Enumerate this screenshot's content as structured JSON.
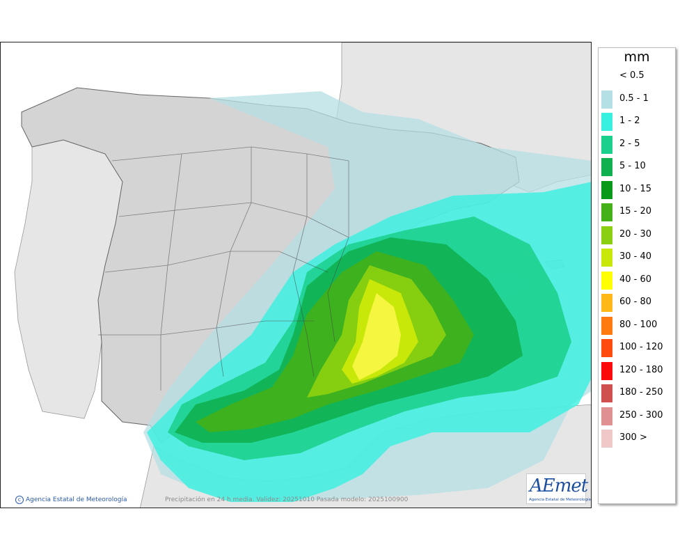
{
  "legend": {
    "title": "mm",
    "items": [
      {
        "label": "< 0.5",
        "color": ""
      },
      {
        "label": "0.5 - 1",
        "color": "#b4dfe4"
      },
      {
        "label": "1 - 2",
        "color": "#38f0e0"
      },
      {
        "label": "2 - 5",
        "color": "#1ad08a"
      },
      {
        "label": "5 - 10",
        "color": "#10b050"
      },
      {
        "label": "10 - 15",
        "color": "#0a9a1a"
      },
      {
        "label": "15 - 20",
        "color": "#44b01a"
      },
      {
        "label": "20 - 30",
        "color": "#8ad010"
      },
      {
        "label": "30 - 40",
        "color": "#c8e80a"
      },
      {
        "label": "40 - 60",
        "color": "#ffff00"
      },
      {
        "label": "60 - 80",
        "color": "#ffb818"
      },
      {
        "label": "80 - 100",
        "color": "#ff7a10"
      },
      {
        "label": "100 - 120",
        "color": "#ff4a10"
      },
      {
        "label": "120 - 180",
        "color": "#ff0a0a"
      },
      {
        "label": "180 - 250",
        "color": "#d05050"
      },
      {
        "label": "250 - 300",
        "color": "#e09090"
      },
      {
        "label": "300 >",
        "color": "#f0c8c8"
      }
    ]
  },
  "footer": {
    "credit": "Agencia Estatal de Meteorología",
    "caption": "Precipitación en 24 h media. Validez: 20251010 Pasada modelo: 2025100900"
  },
  "logo": {
    "mark": "AEmet",
    "subtitle": "Agencia Estatal de Meteorología"
  }
}
